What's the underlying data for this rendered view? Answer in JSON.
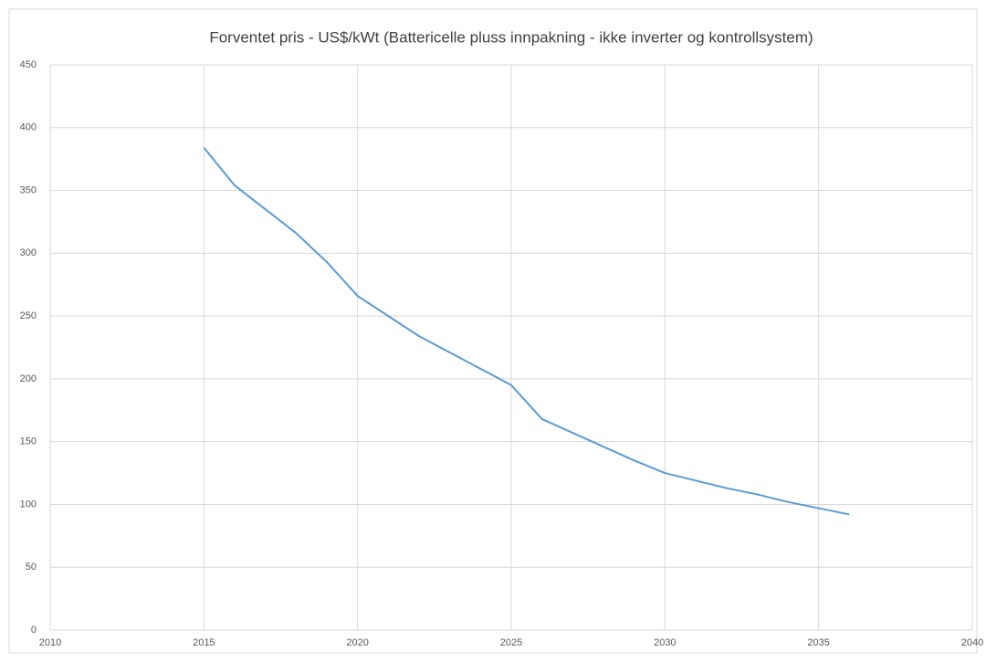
{
  "chart_data": {
    "type": "line",
    "title": "Forventet pris - US$/kWt (Battericelle pluss innpakning - ikke inverter og kontrollsystem)",
    "x": [
      2015,
      2016,
      2017,
      2018,
      2019,
      2020,
      2021,
      2022,
      2023,
      2024,
      2025,
      2026,
      2027,
      2028,
      2029,
      2030,
      2031,
      2032,
      2033,
      2034,
      2035,
      2036
    ],
    "series": [
      {
        "name": "Forventet pris",
        "color": "#5b9bd5",
        "values": [
          384,
          354,
          335,
          316,
          293,
          266,
          250,
          234,
          221,
          208,
          195,
          168,
          157,
          146,
          135,
          125,
          119,
          113,
          108,
          102,
          97,
          92
        ]
      }
    ],
    "xlim": [
      2010,
      2040
    ],
    "xticks": [
      2010,
      2015,
      2020,
      2025,
      2030,
      2035,
      2040
    ],
    "ylim": [
      0,
      450
    ],
    "yticks": [
      0,
      50,
      100,
      150,
      200,
      250,
      300,
      350,
      400,
      450
    ],
    "grid": true
  }
}
